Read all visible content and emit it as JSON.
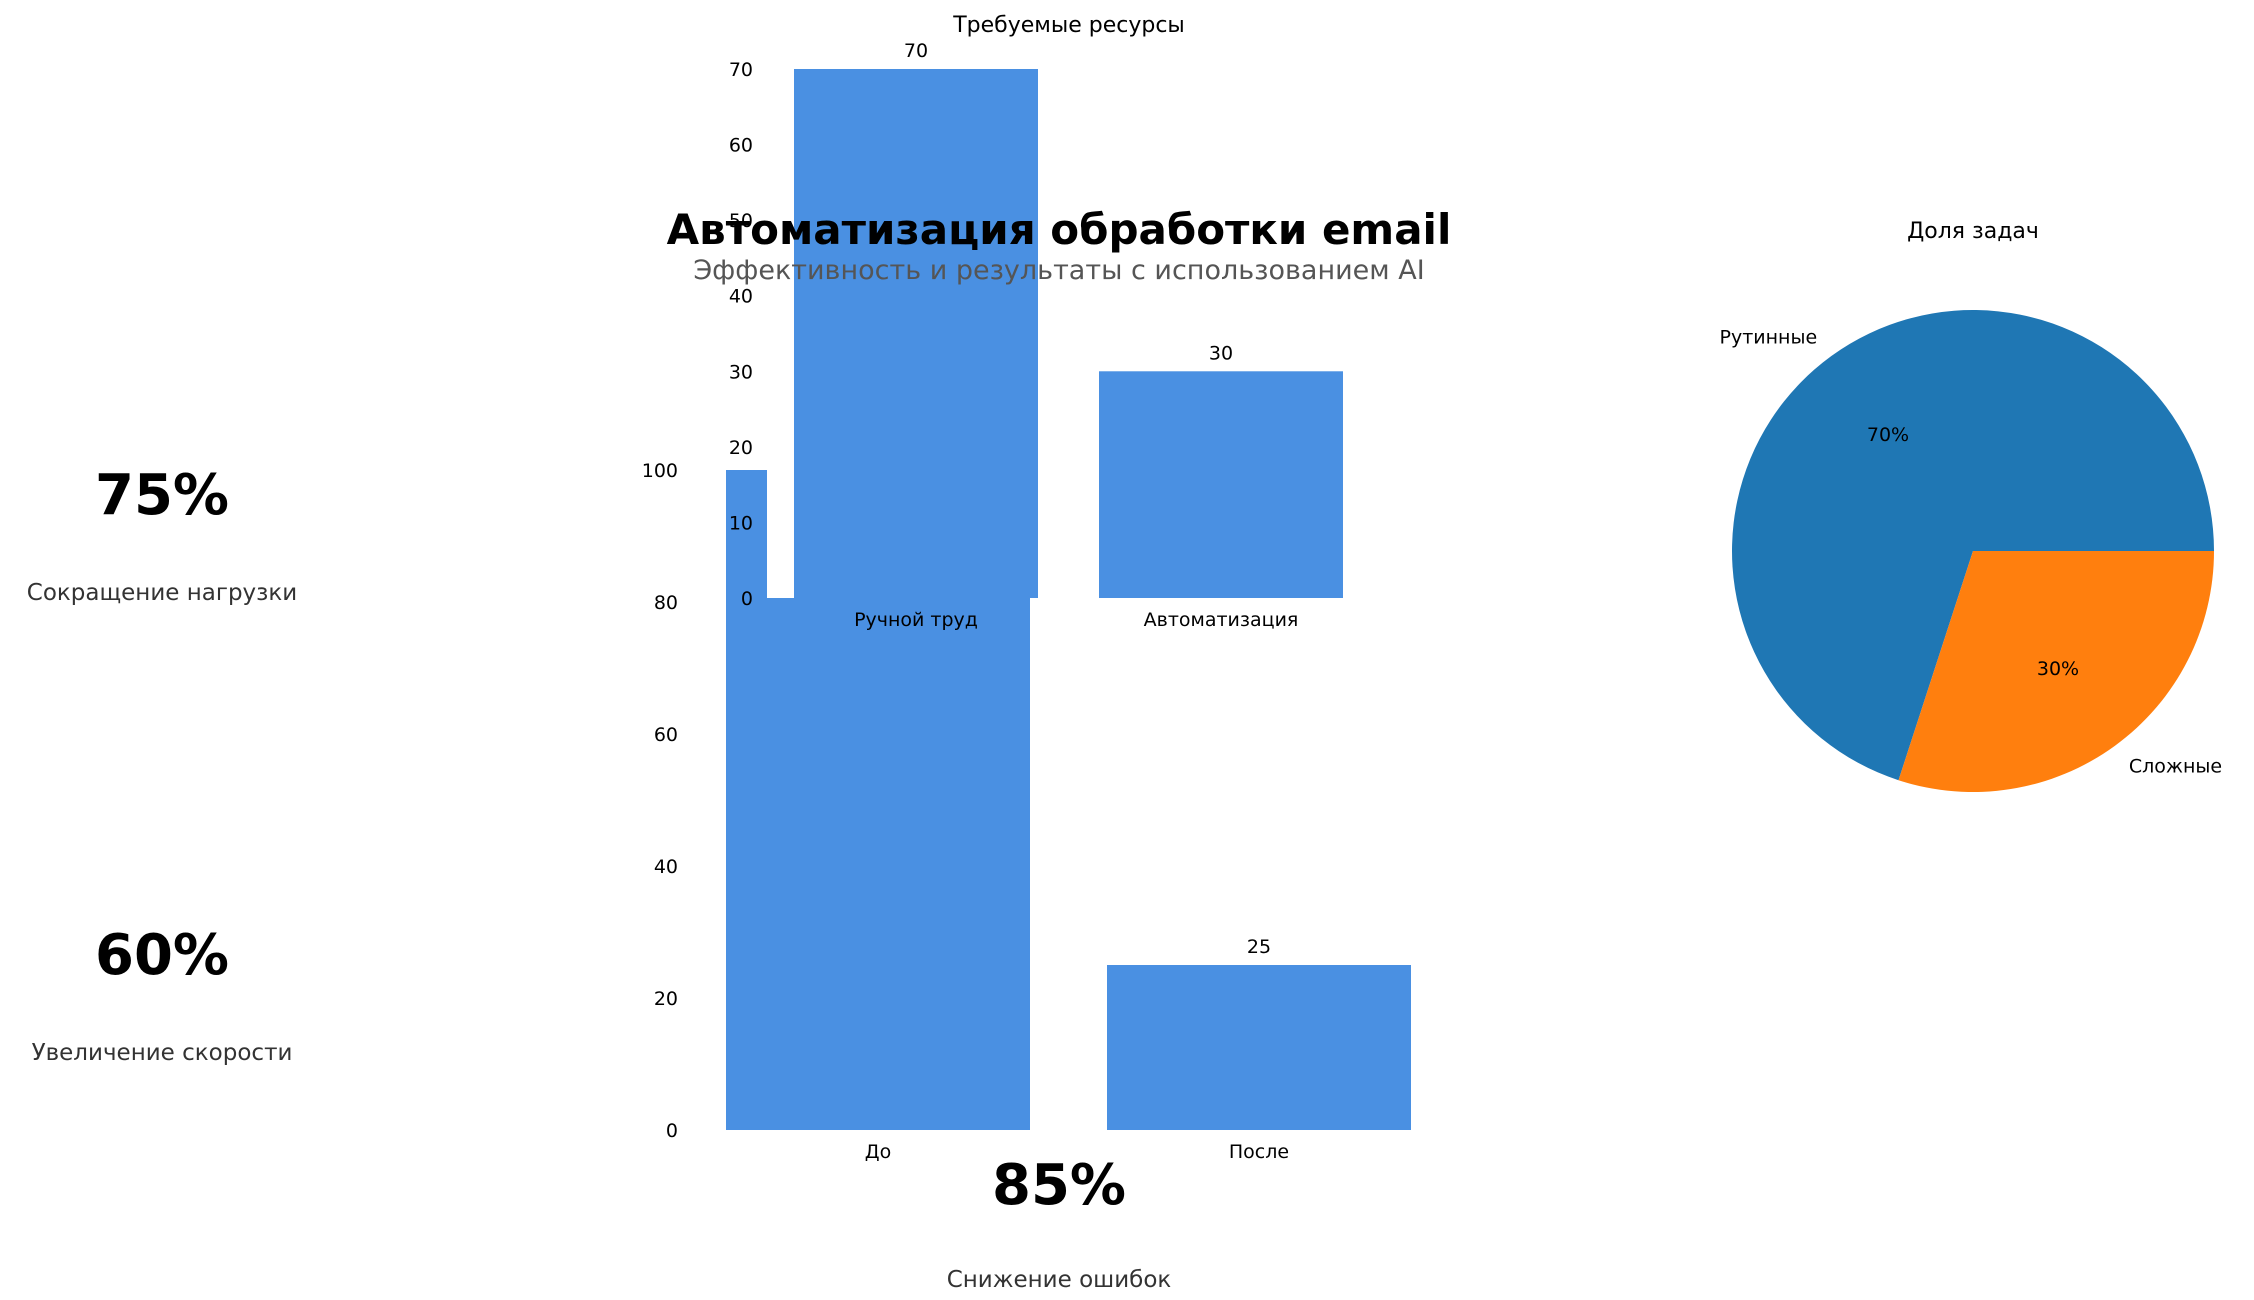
{
  "header": {
    "title": "Автоматизация обработки email",
    "subtitle": "Эффективность и результаты с использованием AI"
  },
  "stats": [
    {
      "value": "75%",
      "label": "Сокращение нагрузки"
    },
    {
      "value": "60%",
      "label": "Увеличение скорости"
    },
    {
      "value": "85%",
      "label": "Снижение ошибок"
    }
  ],
  "colors": {
    "bar": "#4a90e2",
    "pie_routine": "#1f77b4",
    "pie_complex": "#ff7f0e"
  },
  "chart_data": [
    {
      "type": "bar",
      "title": "Требуемые ресурсы",
      "categories": [
        "Ручной труд",
        "Автоматизация"
      ],
      "values": [
        70,
        30
      ],
      "data_labels": [
        "70",
        "30"
      ],
      "yticks": [
        0,
        10,
        20,
        30,
        40,
        50,
        60,
        70
      ],
      "ylim": [
        0,
        70
      ],
      "grid": false
    },
    {
      "type": "bar",
      "title": "",
      "categories": [
        "До",
        "После"
      ],
      "values": [
        100,
        25
      ],
      "data_labels": [
        "",
        "25"
      ],
      "yticks": [
        0,
        20,
        40,
        60,
        80,
        100
      ],
      "ylim": [
        0,
        100
      ],
      "grid": false
    },
    {
      "type": "pie",
      "title": "Доля задач",
      "labels": [
        "Рутинные",
        "Сложные"
      ],
      "values": [
        70,
        30
      ],
      "pct_labels": [
        "70%",
        "30%"
      ]
    }
  ]
}
